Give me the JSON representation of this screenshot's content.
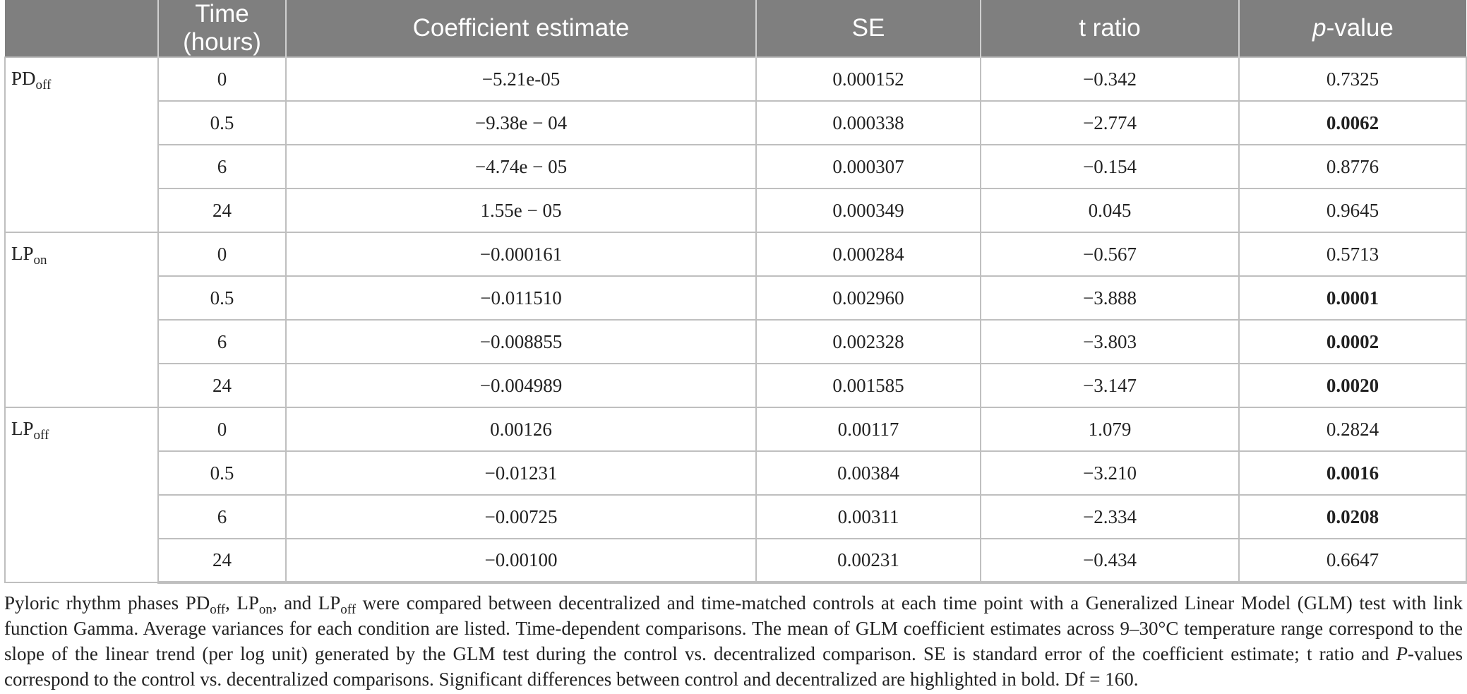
{
  "table": {
    "headers": [
      "",
      "Time (hours)",
      "Coefficient estimate",
      "SE",
      "t ratio",
      "-value"
    ],
    "header_pvalue_italic": "p",
    "groups": [
      {
        "base": "PD",
        "sub": "off"
      },
      {
        "base": "LP",
        "sub": "on"
      },
      {
        "base": "LP",
        "sub": "off"
      }
    ],
    "rows": [
      {
        "time": "0",
        "coef": "−5.21e-05",
        "se": "0.000152",
        "t": "−0.342",
        "p": "0.7325",
        "bold": false
      },
      {
        "time": "0.5",
        "coef": "−9.38e − 04",
        "se": "0.000338",
        "t": "−2.774",
        "p": "0.0062",
        "bold": true
      },
      {
        "time": "6",
        "coef": "−4.74e − 05",
        "se": "0.000307",
        "t": "−0.154",
        "p": "0.8776",
        "bold": false
      },
      {
        "time": "24",
        "coef": "1.55e − 05",
        "se": "0.000349",
        "t": "0.045",
        "p": "0.9645",
        "bold": false
      },
      {
        "time": "0",
        "coef": "−0.000161",
        "se": "0.000284",
        "t": "−0.567",
        "p": "0.5713",
        "bold": false
      },
      {
        "time": "0.5",
        "coef": "−0.011510",
        "se": "0.002960",
        "t": "−3.888",
        "p": "0.0001",
        "bold": true
      },
      {
        "time": "6",
        "coef": "−0.008855",
        "se": "0.002328",
        "t": "−3.803",
        "p": "0.0002",
        "bold": true
      },
      {
        "time": "24",
        "coef": "−0.004989",
        "se": "0.001585",
        "t": "−3.147",
        "p": "0.0020",
        "bold": true
      },
      {
        "time": "0",
        "coef": "0.00126",
        "se": "0.00117",
        "t": "1.079",
        "p": "0.2824",
        "bold": false
      },
      {
        "time": "0.5",
        "coef": "−0.01231",
        "se": "0.00384",
        "t": "−3.210",
        "p": "0.0016",
        "bold": true
      },
      {
        "time": "6",
        "coef": "−0.00725",
        "se": "0.00311",
        "t": "−2.334",
        "p": "0.0208",
        "bold": true
      },
      {
        "time": "24",
        "coef": "−0.00100",
        "se": "0.00231",
        "t": "−0.434",
        "p": "0.6647",
        "bold": false
      }
    ]
  },
  "caption": {
    "s1": "Pyloric rhythm phases PD",
    "s1_sub": "off",
    "s2": ", LP",
    "s2_sub": "on",
    "s3": ", and LP",
    "s3_sub": "off",
    "s4": " were compared between decentralized and time-matched controls at each time point with a Generalized Linear Model (GLM) test with link function Gamma. Average variances for each condition are listed. Time-dependent comparisons. The mean of GLM coefficient estimates across 9–30°C temperature range correspond to the slope of the linear trend (per log unit) generated by the GLM test during the control vs. decentralized comparison. SE is standard error of the coefficient estimate; t ratio and ",
    "s5_italic": "P",
    "s6": "-values correspond to the control vs. decentralized comparisons. Significant differences between control and decentralized are highlighted in bold. Df = 160."
  }
}
